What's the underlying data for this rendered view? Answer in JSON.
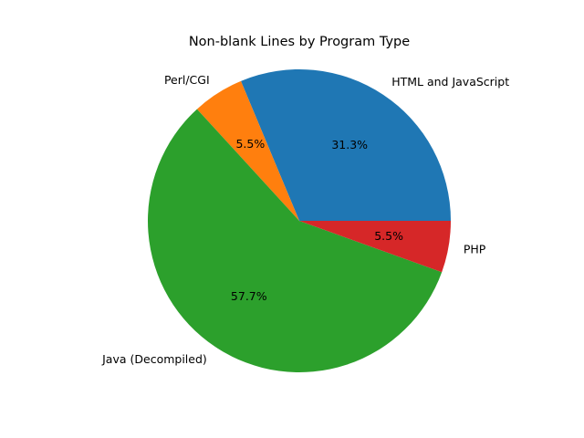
{
  "chart_data": {
    "type": "pie",
    "title": "Non-blank Lines by Program Type",
    "slices": [
      {
        "label": "HTML and JavaScript",
        "value": 31.3,
        "pct_label": "31.3%",
        "color": "#1f77b4"
      },
      {
        "label": "Perl/CGI",
        "value": 5.5,
        "pct_label": "5.5%",
        "color": "#ff7f0e"
      },
      {
        "label": "Java (Decompiled)",
        "value": 57.7,
        "pct_label": "57.7%",
        "color": "#2ca02c"
      },
      {
        "label": "PHP",
        "value": 5.5,
        "pct_label": "5.5%",
        "color": "#d62728"
      }
    ],
    "start_angle": 0,
    "direction": "counterclockwise",
    "legend": "none"
  }
}
